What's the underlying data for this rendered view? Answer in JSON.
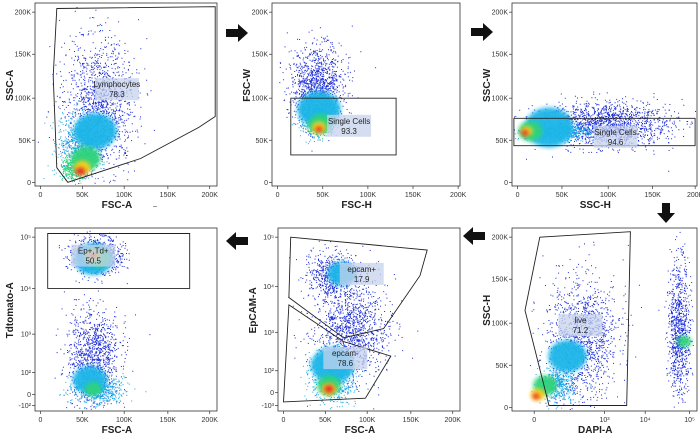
{
  "chart_data": [
    {
      "type": "scatter",
      "xlabel": "FSC-A",
      "ylabel": "SSC-A",
      "xticks": [
        "0",
        "50K",
        "100K",
        "150K",
        "200K"
      ],
      "yticks": [
        "0",
        "50K",
        "100K",
        "150K",
        "200K"
      ],
      "gates": [
        {
          "name": "Lymphocytes",
          "value": "78.3"
        }
      ],
      "extra_label": "–"
    },
    {
      "type": "scatter",
      "xlabel": "FSC-H",
      "ylabel": "FSC-W",
      "xticks": [
        "0",
        "50K",
        "100K",
        "150K",
        "200K"
      ],
      "yticks": [
        "0",
        "50K",
        "100K",
        "150K",
        "200K"
      ],
      "gates": [
        {
          "name": "Single Cells",
          "value": "93.3"
        }
      ]
    },
    {
      "type": "scatter",
      "xlabel": "SSC-H",
      "ylabel": "SSC-W",
      "xticks": [
        "0",
        "50K",
        "100K",
        "150K",
        "200K"
      ],
      "yticks": [
        "0",
        "50K",
        "100K",
        "150K",
        "200K"
      ],
      "gates": [
        {
          "name": "Single Cells",
          "value": "94.6"
        }
      ]
    },
    {
      "type": "scatter",
      "xlabel": "DAPI-A",
      "ylabel": "SSC-H",
      "xticks": [
        "0",
        "10³",
        "10⁴",
        "10⁵"
      ],
      "yticks": [
        "0",
        "50K",
        "100K",
        "150K",
        "200K"
      ],
      "gates": [
        {
          "name": "live",
          "value": "71.2"
        }
      ]
    },
    {
      "type": "scatter",
      "xlabel": "FSC-A",
      "ylabel": "EpCAM-A",
      "xticks": [
        "0",
        "50K",
        "100K",
        "150K",
        "200K"
      ],
      "yticks": [
        "-10³",
        "0",
        "10²",
        "10³",
        "10⁴",
        "10⁵"
      ],
      "gates": [
        {
          "name": "epcam+",
          "value": "17.9"
        },
        {
          "name": "epcam-",
          "value": "78.6"
        }
      ]
    },
    {
      "type": "scatter",
      "xlabel": "FSC-A",
      "ylabel": "Tdtomato-A",
      "xticks": [
        "0",
        "50K",
        "100K",
        "150K",
        "200K"
      ],
      "yticks": [
        "-10²",
        "0",
        "10²",
        "10³",
        "10⁴",
        "10⁵"
      ],
      "gates": [
        {
          "name": "Ep+,Td+",
          "value": "50.5"
        }
      ]
    }
  ]
}
